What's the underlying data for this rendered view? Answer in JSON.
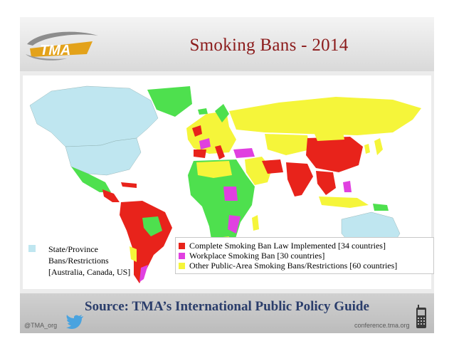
{
  "header": {
    "title": "Smoking Bans - 2014"
  },
  "logo": {
    "text": "TMA"
  },
  "legend_left": {
    "label_lines": [
      "State/Province",
      "Bans/Restrictions",
      "[Australia, Canada, US]"
    ],
    "color": "#bfe6f0"
  },
  "legend_right": {
    "items": [
      {
        "label": "Complete Smoking Ban Law Implemented [34 countries]",
        "color": "#e8231b"
      },
      {
        "label": "Workplace Smoking Ban [30 countries]",
        "color": "#e040e0"
      },
      {
        "label": "Other Public-Area Smoking Bans/Restrictions [60 countries]",
        "color": "#f5f53a"
      }
    ]
  },
  "map_colors": {
    "state_province": "#bfe6f0",
    "complete_ban": "#e8231b",
    "workplace_ban": "#e040e0",
    "other_public": "#f5f53a",
    "no_data": "#4ee04e"
  },
  "footer": {
    "source": "Source:  TMA’s International Public Policy Guide",
    "handle": "@TMA_org",
    "site": "conference.tma.org"
  },
  "icons": [
    "tma-logo-icon",
    "twitter-bird-icon",
    "mobile-phone-icon"
  ]
}
